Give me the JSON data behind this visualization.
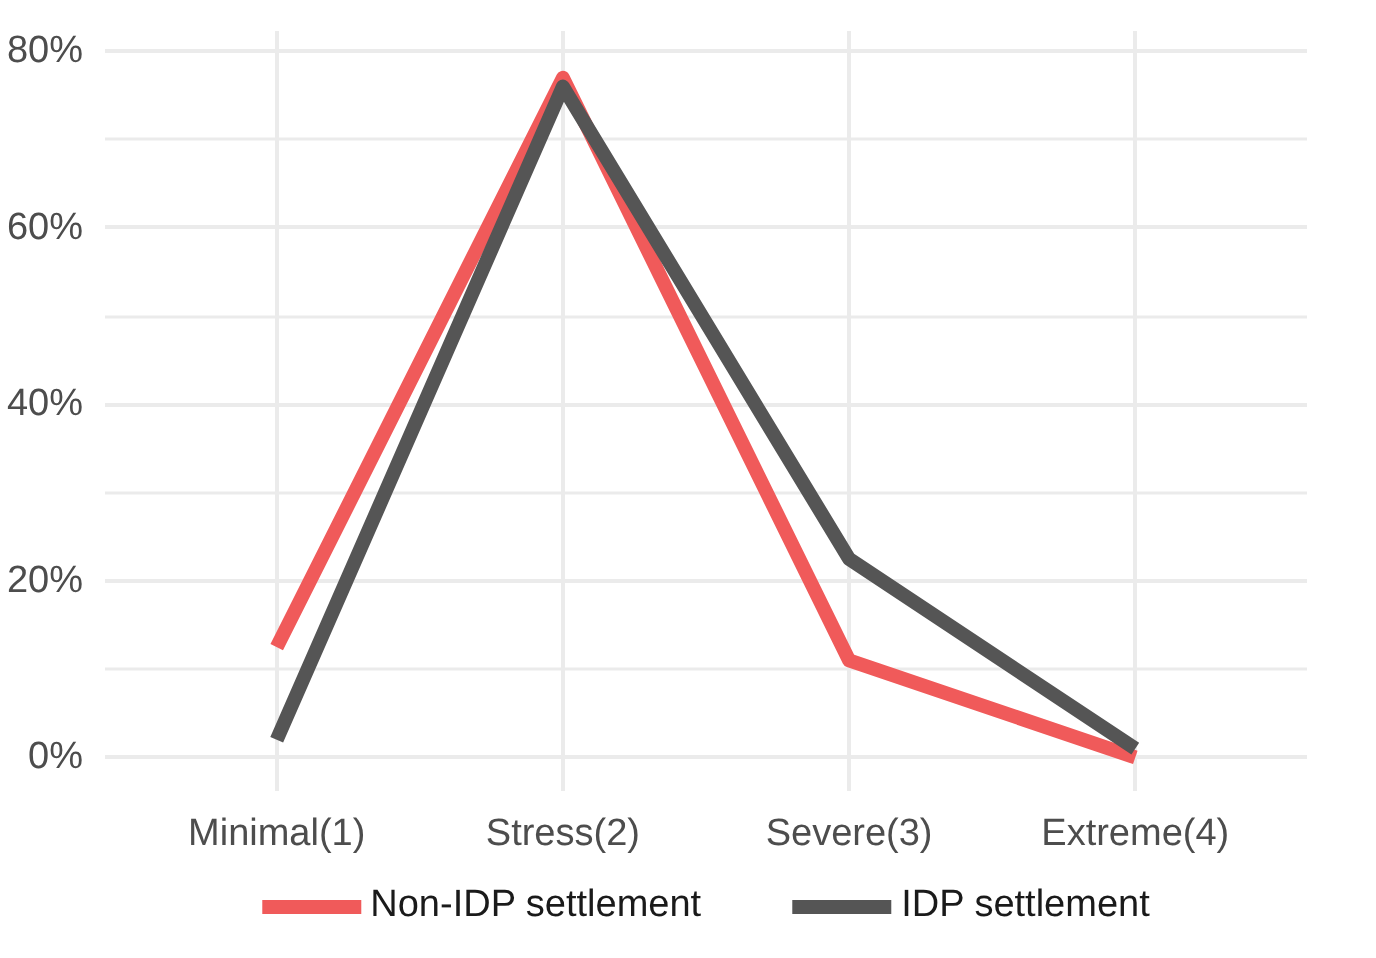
{
  "chart_data": {
    "type": "line",
    "categories": [
      "Minimal(1)",
      "Stress(2)",
      "Severe(3)",
      "Extreme(4)"
    ],
    "series": [
      {
        "name": "Non-IDP settlement",
        "color": "#f05a5a",
        "values": [
          12.5,
          77,
          11,
          0
        ]
      },
      {
        "name": "IDP settlement",
        "color": "#555555",
        "values": [
          2,
          76,
          22.5,
          1
        ]
      }
    ],
    "ylim": [
      -3.8,
      82.3
    ],
    "yticks": [
      {
        "value": 0,
        "label": "0%"
      },
      {
        "value": 20,
        "label": "20%"
      },
      {
        "value": 40,
        "label": "40%"
      },
      {
        "value": 60,
        "label": "60%"
      },
      {
        "value": 80,
        "label": "80%"
      }
    ],
    "grid": true,
    "legend": "bottom",
    "line_style": "solid",
    "marker": "none"
  }
}
